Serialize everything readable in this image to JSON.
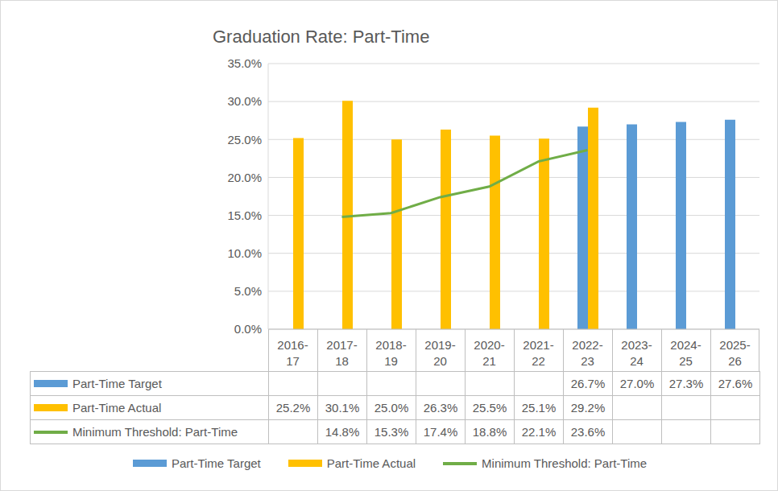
{
  "chart_data": {
    "type": "bar",
    "title": "Graduation Rate: Part-Time",
    "categories": [
      "2016-17",
      "2017-18",
      "2018-19",
      "2019-20",
      "2020-21",
      "2021-22",
      "2022-23",
      "2023-24",
      "2024-25",
      "2025-26"
    ],
    "series": [
      {
        "name": "Part-Time Target",
        "type": "bar",
        "color": "#5b9bd5",
        "values": [
          null,
          null,
          null,
          null,
          null,
          null,
          26.7,
          27.0,
          27.3,
          27.6
        ],
        "value_labels": [
          null,
          null,
          null,
          null,
          null,
          null,
          "26.7%",
          "27.0%",
          "27.3%",
          "27.6%"
        ]
      },
      {
        "name": "Part-Time Actual",
        "type": "bar",
        "color": "#ffc000",
        "values": [
          25.2,
          30.1,
          25.0,
          26.3,
          25.5,
          25.1,
          29.2,
          null,
          null,
          null
        ],
        "value_labels": [
          "25.2%",
          "30.1%",
          "25.0%",
          "26.3%",
          "25.5%",
          "25.1%",
          "29.2%",
          null,
          null,
          null
        ]
      },
      {
        "name": "Minimum Threshold: Part-Time",
        "type": "line",
        "color": "#70ad47",
        "values": [
          null,
          14.8,
          15.3,
          17.4,
          18.8,
          22.1,
          23.6,
          null,
          null,
          null
        ],
        "value_labels": [
          null,
          "14.8%",
          "15.3%",
          "17.4%",
          "18.8%",
          "22.1%",
          "23.6%",
          null,
          null,
          null
        ]
      }
    ],
    "ylim": [
      0,
      35
    ],
    "yticks": [
      {
        "value": 0,
        "label": "0.0%"
      },
      {
        "value": 5,
        "label": "5.0%"
      },
      {
        "value": 10,
        "label": "10.0%"
      },
      {
        "value": 15,
        "label": "15.0%"
      },
      {
        "value": 20,
        "label": "20.0%"
      },
      {
        "value": 25,
        "label": "25.0%"
      },
      {
        "value": 30,
        "label": "30.0%"
      },
      {
        "value": 35,
        "label": "35.0%"
      }
    ],
    "grid": true,
    "legend": "bottom"
  }
}
